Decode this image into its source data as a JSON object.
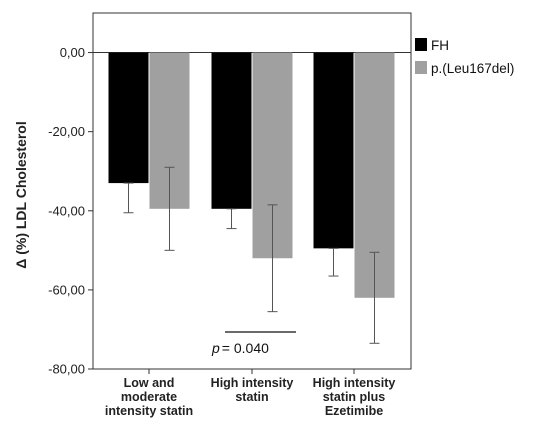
{
  "chart_data": {
    "type": "bar",
    "ylabel": "Δ (%) LDL Cholesterol",
    "ylim": [
      -80,
      10
    ],
    "yticks": [
      "0,00",
      "-20,00",
      "-40,00",
      "-60,00",
      "-80,00"
    ],
    "ytick_values": [
      0,
      -20,
      -40,
      -60,
      -80
    ],
    "categories": [
      [
        "Low and",
        "moderate",
        "intensity statin"
      ],
      [
        "High intensity",
        "statin"
      ],
      [
        "High intensity",
        "statin plus",
        "Ezetimibe"
      ]
    ],
    "series": [
      {
        "name": "FH",
        "color": "#000000",
        "values": [
          -33.0,
          -39.5,
          -49.5
        ],
        "err_low": [
          -40.5,
          -44.5,
          -56.5
        ],
        "err_high": [
          -33.0,
          -39.5,
          -49.5
        ]
      },
      {
        "name": "p.(Leu167del)",
        "color": "#a0a0a0",
        "values": [
          -39.5,
          -52.0,
          -62.0
        ],
        "err_low": [
          -50.0,
          -65.5,
          -73.5
        ],
        "err_high": [
          -29.0,
          -38.5,
          -50.5
        ]
      }
    ],
    "annotation": {
      "p_symbol": "p",
      "p_text": "= 0.040"
    },
    "grid": false,
    "legend": "top-right"
  }
}
